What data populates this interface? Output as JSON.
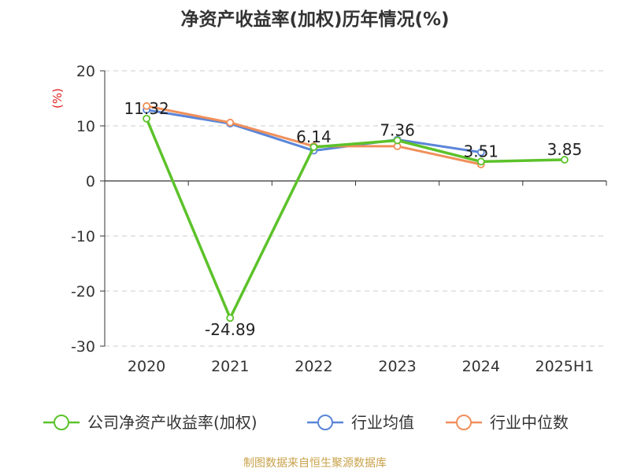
{
  "title": "净资产收益率(加权)历年情况(%)",
  "unit_label": "(%)",
  "source": "制图数据来自恒生聚源数据库",
  "chart_data": {
    "type": "line",
    "title": "净资产收益率(加权)历年情况(%)",
    "ylabel": "(%)",
    "xlabel": "",
    "categories": [
      "2020",
      "2021",
      "2022",
      "2023",
      "2024",
      "2025H1"
    ],
    "ylim": [
      -30,
      20
    ],
    "yticks": [
      "20",
      "10",
      "0",
      "-10",
      "-20",
      "-30"
    ],
    "grid": true,
    "legend_position": "bottom",
    "series": [
      {
        "name": "公司净资产收益率(加权)",
        "color": "#5cc22a",
        "values": [
          11.32,
          -24.89,
          6.14,
          7.36,
          3.51,
          3.85
        ],
        "labels": [
          "11.32",
          "-24.89",
          "6.14",
          "7.36",
          "3.51",
          "3.85"
        ]
      },
      {
        "name": "行业均值",
        "color": "#5a85d8",
        "values": [
          12.9,
          10.4,
          5.5,
          7.5,
          5.2,
          null
        ]
      },
      {
        "name": "行业中位数",
        "color": "#f08f5a",
        "values": [
          13.6,
          10.6,
          6.3,
          6.3,
          3.0,
          null
        ]
      }
    ]
  }
}
